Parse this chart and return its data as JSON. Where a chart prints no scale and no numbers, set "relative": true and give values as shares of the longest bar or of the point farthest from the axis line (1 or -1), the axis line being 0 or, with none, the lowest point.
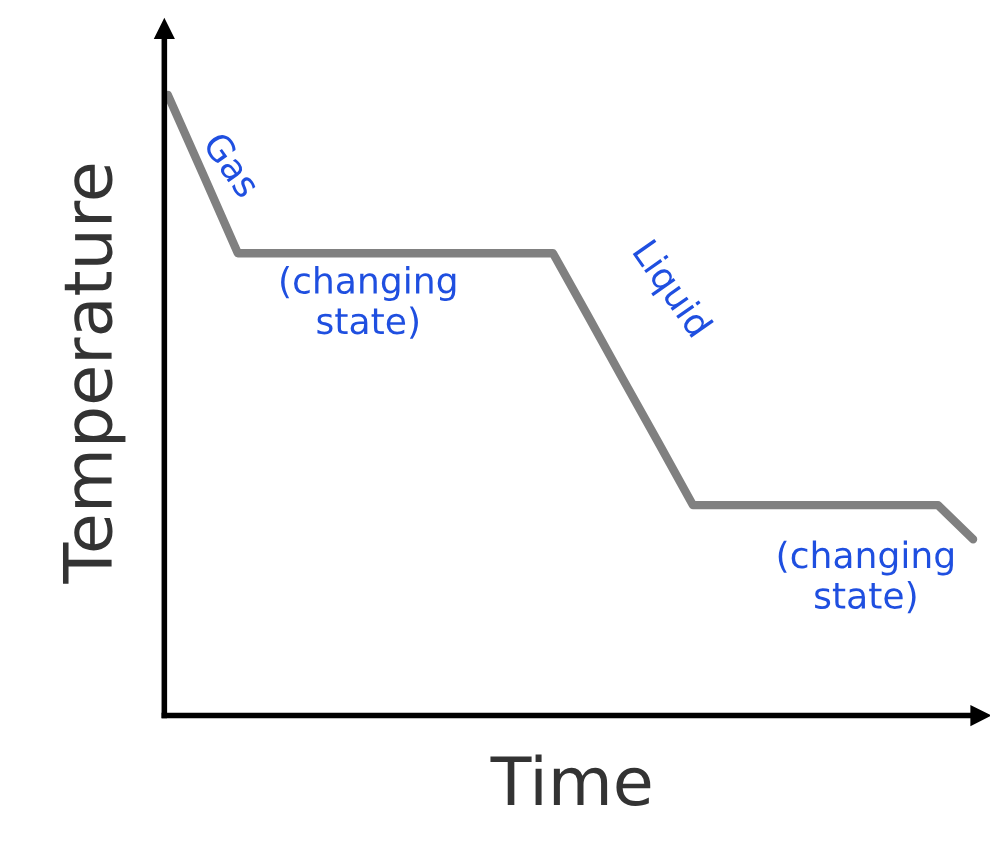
{
  "chart_data": {
    "type": "line",
    "relative": true,
    "xlabel": "Time",
    "ylabel": "Temperature",
    "categories": [
      null,
      null,
      null,
      null,
      null,
      null,
      null,
      null,
      null,
      null,
      null,
      null,
      null,
      null,
      null,
      null,
      null,
      null,
      null,
      null,
      null,
      null,
      null,
      null
    ],
    "series": [
      {
        "color": "#808080",
        "values": [
          1,
          0.873,
          0.745,
          0.745,
          0.745,
          0.745,
          0.745,
          0.745,
          0.745,
          0.745,
          0.745,
          0.745,
          0.644,
          0.542,
          0.441,
          0.339,
          0.339,
          0.339,
          0.339,
          0.339,
          0.339,
          0.339,
          0.339,
          0.284
        ]
      }
    ],
    "annotations": [
      "Gas",
      "(changing\nstate)",
      "Liquid",
      "(changing\nstate)"
    ],
    "tick_labels": false
  }
}
